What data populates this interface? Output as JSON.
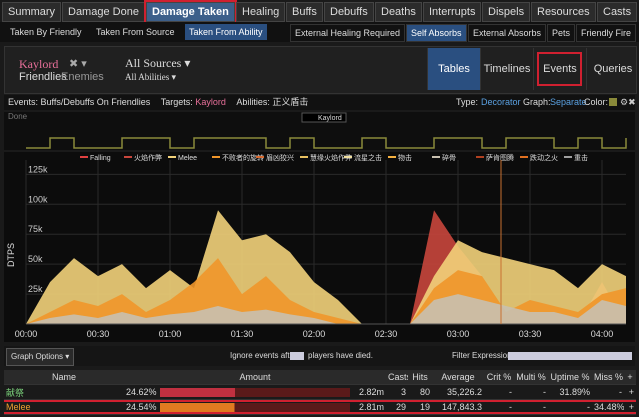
{
  "tabs": [
    {
      "label": "Summary"
    },
    {
      "label": "Damage Done"
    },
    {
      "label": "Damage Taken",
      "selected": true
    },
    {
      "label": "Healing"
    },
    {
      "label": "Buffs"
    },
    {
      "label": "Debuffs"
    },
    {
      "label": "Deaths"
    },
    {
      "label": "Interrupts"
    },
    {
      "label": "Dispels"
    },
    {
      "label": "Resources"
    },
    {
      "label": "Casts"
    }
  ],
  "subtabs_left": [
    {
      "label": "Taken By Friendly"
    },
    {
      "label": "Taken From Source"
    },
    {
      "label": "Taken From Ability",
      "selected": true
    }
  ],
  "subtabs_right": [
    {
      "label": "External Healing Required"
    },
    {
      "label": "Self Absorbs",
      "selected": true
    },
    {
      "label": "External Absorbs"
    },
    {
      "label": "Pets"
    },
    {
      "label": "Friendly Fire"
    }
  ],
  "filter": {
    "target": "Kaylord",
    "remove": "✖",
    "scope": [
      "Friendlies",
      "Enemies"
    ],
    "sources": "All Sources",
    "abilities": "All Abilities"
  },
  "views": [
    {
      "label": "Tables",
      "selected": true
    },
    {
      "label": "Timelines"
    },
    {
      "label": "Events",
      "highlighted": true
    },
    {
      "label": "Queries"
    }
  ],
  "info": {
    "events_label": "Events:",
    "events": "Buffs/Debuffs On Friendlies",
    "targets_label": "Targets:",
    "target": "Kaylord",
    "abilities_label": "Abilities:",
    "ability": "正义盾击",
    "type_label": "Type:",
    "type": "Decorator",
    "graph_label": "Graph:",
    "graph": "Separate",
    "color_label": "Color:"
  },
  "buff_graph": {
    "label": "Done",
    "legend": "Kaylord",
    "color": "#8a8a3a",
    "x": [
      0,
      10,
      20,
      30,
      40,
      50,
      60,
      70,
      80,
      90,
      100,
      110,
      120,
      130,
      140,
      150,
      160,
      170,
      180,
      190,
      200,
      210,
      220,
      230,
      240,
      250
    ],
    "values": [
      0,
      1,
      0,
      0,
      1,
      1,
      0,
      1,
      1,
      1,
      0,
      1,
      0,
      0,
      1,
      0,
      0,
      1,
      1,
      0,
      1,
      1,
      0,
      1,
      0,
      1
    ]
  },
  "chart": {
    "type": "area",
    "y_label": "DTPS",
    "x": [
      0,
      10,
      20,
      30,
      40,
      50,
      60,
      70,
      80,
      90,
      100,
      110,
      120,
      130,
      140,
      150,
      160,
      170,
      180,
      190,
      200,
      210,
      220,
      230,
      240,
      250
    ],
    "xlim": [
      0,
      250
    ],
    "xticks": [
      {
        "value": 0,
        "label": "00:00"
      },
      {
        "value": 30,
        "label": "00:30"
      },
      {
        "value": 60,
        "label": "01:00"
      },
      {
        "value": 90,
        "label": "01:30"
      },
      {
        "value": 120,
        "label": "02:00"
      },
      {
        "value": 150,
        "label": "02:30"
      },
      {
        "value": 180,
        "label": "03:00"
      },
      {
        "value": 210,
        "label": "03:30"
      },
      {
        "value": 240,
        "label": "04:00"
      }
    ],
    "ylim": [
      0,
      137000
    ],
    "yticks": [
      {
        "value": 25000,
        "label": "25k"
      },
      {
        "value": 50000,
        "label": "50k"
      },
      {
        "value": 75000,
        "label": "75k"
      },
      {
        "value": 100000,
        "label": "100k"
      },
      {
        "value": 125000,
        "label": "125k"
      }
    ],
    "series": [
      {
        "name": "Falling",
        "color": "#e04040"
      },
      {
        "name": "火焰作弊",
        "color": "#c8463c",
        "values": [
          0,
          0,
          0,
          0,
          0,
          0,
          0,
          0,
          0,
          0,
          0,
          0,
          0,
          0,
          0,
          0,
          0,
          95000,
          65000,
          40000,
          0,
          0,
          0,
          0,
          35000,
          0
        ]
      },
      {
        "name": "Melee",
        "color": "#f2d27a",
        "values": [
          0,
          35000,
          55000,
          40000,
          50000,
          30000,
          45000,
          30000,
          95000,
          70000,
          75000,
          60000,
          35000,
          20000,
          0,
          0,
          0,
          40000,
          70000,
          60000,
          55000,
          50000,
          45000,
          30000,
          50000,
          40000
        ]
      },
      {
        "name": "不败者的旋转",
        "color": "#f0962a",
        "values": [
          0,
          10000,
          20000,
          15000,
          25000,
          10000,
          20000,
          35000,
          55000,
          25000,
          40000,
          20000,
          10000,
          5000,
          0,
          0,
          0,
          30000,
          45000,
          40000,
          10000,
          20000,
          15000,
          10000,
          25000,
          30000
        ]
      },
      {
        "name": "眉凶狡兴",
        "color": "#d86a30"
      },
      {
        "name": "慧缘火焰作弊",
        "color": "#e8c060"
      },
      {
        "name": "流星之击",
        "color": "#f0e0a0"
      },
      {
        "name": "物击",
        "color": "#f5b040"
      },
      {
        "name": "碎骨",
        "color": "#c8c0b0",
        "values": [
          0,
          5000,
          8000,
          5000,
          10000,
          5000,
          8000,
          10000,
          15000,
          10000,
          12000,
          8000,
          5000,
          0,
          0,
          0,
          0,
          20000,
          25000,
          20000,
          15000,
          10000,
          10000,
          5000,
          20000,
          15000
        ]
      },
      {
        "name": "萨肯图腾",
        "color": "#b04020"
      },
      {
        "name": "跌动之火",
        "color": "#e07020"
      },
      {
        "name": "重击",
        "color": "#a0a0a0"
      }
    ]
  },
  "options": {
    "button": "Graph Options",
    "ignore_before": "Ignore events after",
    "ignore_after": "players have died.",
    "filter": "Filter Expression:"
  },
  "table": {
    "columns": [
      "Name",
      "Amount",
      "Casts",
      "Hits",
      "Average",
      "Crit %",
      "Multi %",
      "Uptime %",
      "Miss %",
      "+"
    ],
    "rows": [
      {
        "name": "献祭",
        "pct": "24.62%",
        "amount": "2.82m",
        "casts": 3,
        "hits": 80,
        "average": "35,226.2",
        "crit": "-",
        "multi": "-",
        "uptime": "31.89%",
        "miss": "-",
        "more": "+"
      },
      {
        "name": "Melee",
        "pct": "24.54%",
        "amount": "2.81m",
        "casts": 29,
        "hits": 19,
        "average": "147,843.3",
        "crit": "-",
        "multi": "-",
        "uptime": "-",
        "miss": "34.48%",
        "more": "+",
        "highlighted": true
      }
    ]
  }
}
